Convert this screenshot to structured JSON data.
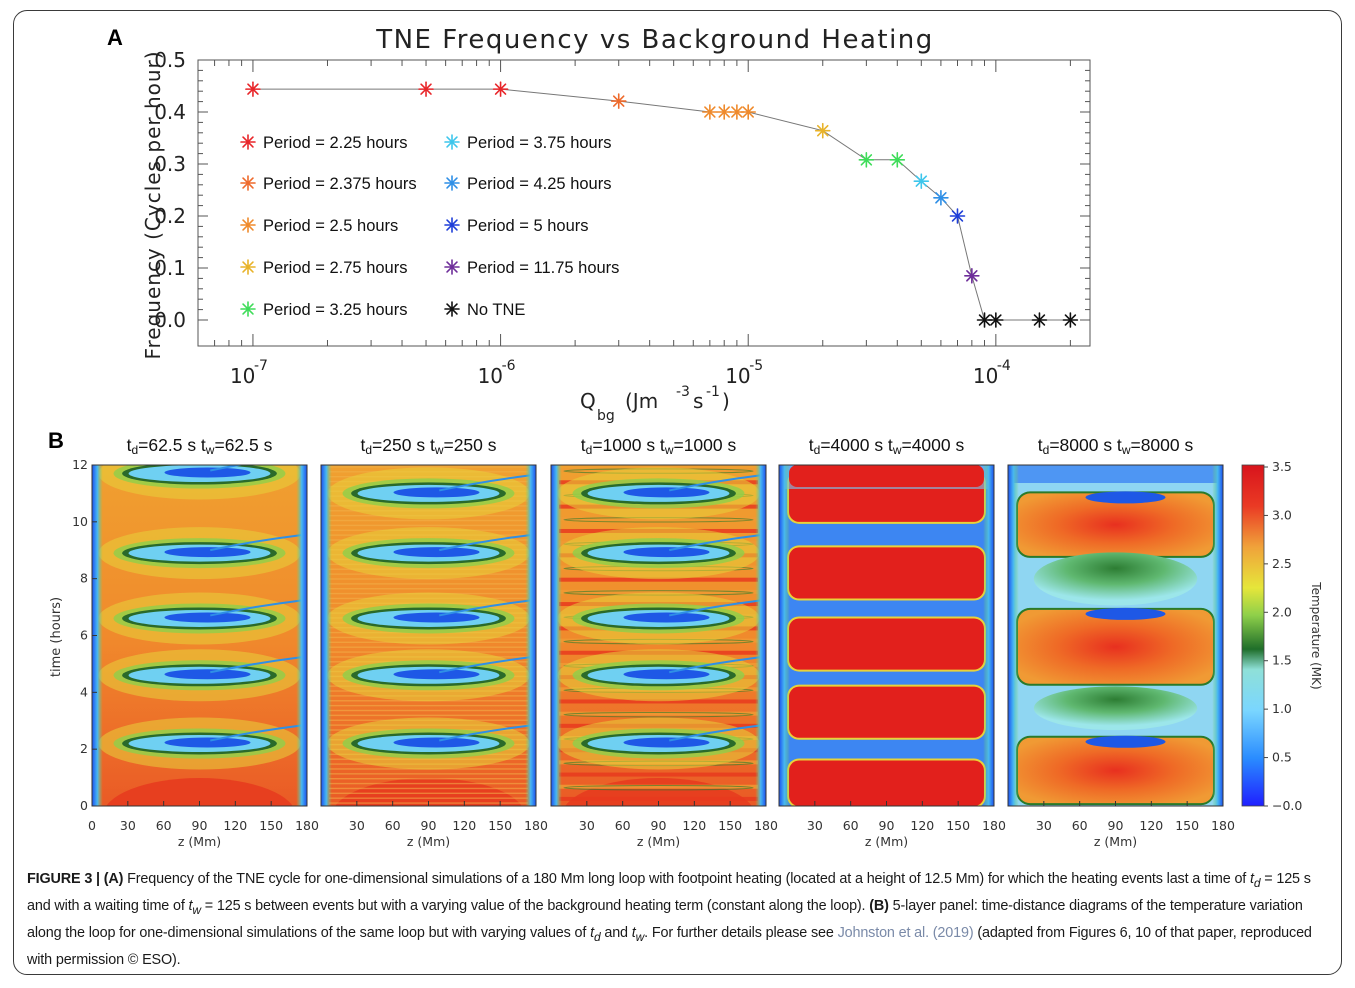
{
  "panel_a": {
    "letter": "A",
    "title": "TNE Frequency vs Background Heating",
    "ylabel": "Frequency (Cycles per hour)",
    "xlabel_main": "Q",
    "xlabel_sub": "bg",
    "xlabel_units_pre": "(Jm",
    "xlabel_units_exp1": "-3",
    "xlabel_units_mid": "s",
    "xlabel_units_exp2": "-1",
    "xlabel_units_post": ")",
    "yticks": [
      "0.5",
      "0.4",
      "0.3",
      "0.2",
      "0.1",
      "0.0"
    ],
    "xticks": [
      {
        "base": "10",
        "exp": "-7"
      },
      {
        "base": "10",
        "exp": "-6"
      },
      {
        "base": "10",
        "exp": "-5"
      },
      {
        "base": "10",
        "exp": "-4"
      }
    ],
    "legend_left": [
      {
        "label": "Period = 2.25 hours",
        "color": "#e8262a"
      },
      {
        "label": "Period = 2.375 hours",
        "color": "#ee6a2c"
      },
      {
        "label": "Period = 2.5 hours",
        "color": "#ef8a2c"
      },
      {
        "label": "Period = 2.75 hours",
        "color": "#e8b32a"
      },
      {
        "label": "Period = 3.25 hours",
        "color": "#3fdc5a"
      }
    ],
    "legend_right": [
      {
        "label": "Period = 3.75 hours",
        "color": "#3ec6ec"
      },
      {
        "label": "Period = 4.25 hours",
        "color": "#2f8fe6"
      },
      {
        "label": "Period = 5 hours",
        "color": "#1f3fd8"
      },
      {
        "label": "Period = 11.75 hours",
        "color": "#6e2e9a"
      },
      {
        "label": "No TNE",
        "color": "#111111"
      }
    ]
  },
  "chart_data": [
    {
      "type": "scatter",
      "title": "TNE Frequency vs Background Heating",
      "xlabel": "Q_bg (Jm^-3 s^-1)",
      "ylabel": "Frequency (Cycles per hour)",
      "xscale": "log",
      "xlim": [
        6e-08,
        0.00024
      ],
      "ylim": [
        -0.05,
        0.5
      ],
      "grid": false,
      "legend_position": "left",
      "connecting_line": true,
      "points": [
        {
          "x": 1e-07,
          "y": 0.444,
          "color": "#e8262a"
        },
        {
          "x": 5e-07,
          "y": 0.444,
          "color": "#e8262a"
        },
        {
          "x": 1e-06,
          "y": 0.444,
          "color": "#e8262a"
        },
        {
          "x": 3e-06,
          "y": 0.421,
          "color": "#ee6a2c"
        },
        {
          "x": 7e-06,
          "y": 0.4,
          "color": "#ef8a2c"
        },
        {
          "x": 8e-06,
          "y": 0.4,
          "color": "#ef8a2c"
        },
        {
          "x": 9e-06,
          "y": 0.4,
          "color": "#ef8a2c"
        },
        {
          "x": 1e-05,
          "y": 0.4,
          "color": "#ef8a2c"
        },
        {
          "x": 2e-05,
          "y": 0.364,
          "color": "#e8b32a"
        },
        {
          "x": 3e-05,
          "y": 0.308,
          "color": "#3fdc5a"
        },
        {
          "x": 4e-05,
          "y": 0.308,
          "color": "#3fdc5a"
        },
        {
          "x": 5e-05,
          "y": 0.267,
          "color": "#3ec6ec"
        },
        {
          "x": 6e-05,
          "y": 0.235,
          "color": "#2f8fe6"
        },
        {
          "x": 7e-05,
          "y": 0.2,
          "color": "#1f3fd8"
        },
        {
          "x": 8e-05,
          "y": 0.085,
          "color": "#6e2e9a"
        },
        {
          "x": 9e-05,
          "y": 0.0,
          "color": "#111111"
        },
        {
          "x": 0.0001,
          "y": 0.0,
          "color": "#111111"
        },
        {
          "x": 0.00015,
          "y": 0.0,
          "color": "#111111"
        },
        {
          "x": 0.0002,
          "y": 0.0,
          "color": "#111111"
        }
      ]
    },
    {
      "type": "heatmap",
      "xlabel": "z (Mm)",
      "ylabel": "time (hours)",
      "xlim": [
        0,
        180
      ],
      "ylim": [
        0,
        12
      ],
      "colorbar_label": "Temperature (MK)",
      "colorbar_range": [
        0.0,
        3.5
      ],
      "panels": [
        {
          "td": "62.5 s",
          "tw": "62.5 s",
          "cool_times": [
            2.2,
            4.6,
            6.6,
            8.9,
            11.7
          ]
        },
        {
          "td": "250 s",
          "tw": "250 s",
          "cool_times": [
            2.2,
            4.6,
            6.6,
            8.9,
            11.0
          ]
        },
        {
          "td": "1000 s",
          "tw": "1000 s",
          "cool_times": [
            2.2,
            4.6,
            6.6,
            8.9,
            11.0
          ]
        },
        {
          "td": "4000 s",
          "tw": "4000 s",
          "cool_times": []
        },
        {
          "td": "8000 s",
          "tw": "8000 s",
          "cool_times": [
            1.0,
            7.8,
            11.0
          ]
        }
      ]
    }
  ],
  "panel_b": {
    "letter": "B",
    "ylabel": "time (hours)",
    "xlabel": "z (Mm)",
    "yticks": [
      "0",
      "2",
      "4",
      "6",
      "8",
      "10",
      "12"
    ],
    "xticks": [
      "0",
      "30",
      "60",
      "90",
      "120",
      "150",
      "180"
    ],
    "panel_titles": [
      {
        "td": "62.5 s",
        "tw": "62.5 s"
      },
      {
        "td": "250 s",
        "tw": "250 s"
      },
      {
        "td": "1000 s",
        "tw": "1000 s"
      },
      {
        "td": "4000 s",
        "tw": "4000 s"
      },
      {
        "td": "8000 s",
        "tw": "8000 s"
      }
    ],
    "colorbar_label": "Temperature (MK)",
    "colorbar_ticks": [
      "3.5",
      "3.0",
      "2.5",
      "2.0",
      "1.5",
      "1.0",
      "0.5",
      "−0.0"
    ]
  },
  "caption": {
    "figure_label": "FIGURE 3 | (A)",
    "part_a": " Frequency of the TNE cycle for one-dimensional simulations of a 180 Mm long loop with footpoint heating (located at a height of 12.5 Mm) for which the heating events last a time of ",
    "td_sym": "t",
    "td_sub": "d",
    "eq1": " = 125 s and with a waiting time of ",
    "tw_sym": "t",
    "tw_sub": "w",
    "eq2": " = 125 s between events but with a varying value of the background heating term (constant along the loop). ",
    "b_label": "(B)",
    "part_b": " 5-layer panel: time-distance diagrams of the temperature variation along the loop for one-dimensional simulations of the same loop but with varying values of ",
    "and": " and ",
    "further": ". For further details please see ",
    "ref": "Johnston et al. (2019)",
    "adapted": " (adapted from Figures 6, 10 of that paper, reproduced with permission © ESO)."
  }
}
